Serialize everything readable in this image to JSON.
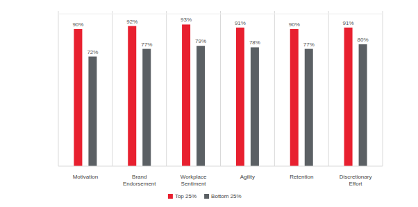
{
  "chart_data": {
    "type": "bar",
    "categories": [
      "Motivation",
      "Brand Endorsement",
      "Workplace Sentiment",
      "Agility",
      "Retention",
      "Discretionary Effort"
    ],
    "series": [
      {
        "name": "Top 25%",
        "color": "#e8202f",
        "values": [
          90,
          92,
          93,
          91,
          90,
          91
        ],
        "value_labels": [
          "90%",
          "92%",
          "93%",
          "91%",
          "90%",
          "91%"
        ]
      },
      {
        "name": "Bottom 25%",
        "color": "#5b6064",
        "values": [
          72,
          77,
          79,
          78,
          77,
          80
        ],
        "value_labels": [
          "72%",
          "77%",
          "79%",
          "78%",
          "77%",
          "80%"
        ]
      }
    ],
    "ylim": [
      0,
      100
    ],
    "data_labels": true,
    "tick_labels": "x",
    "legend": "bottom"
  }
}
